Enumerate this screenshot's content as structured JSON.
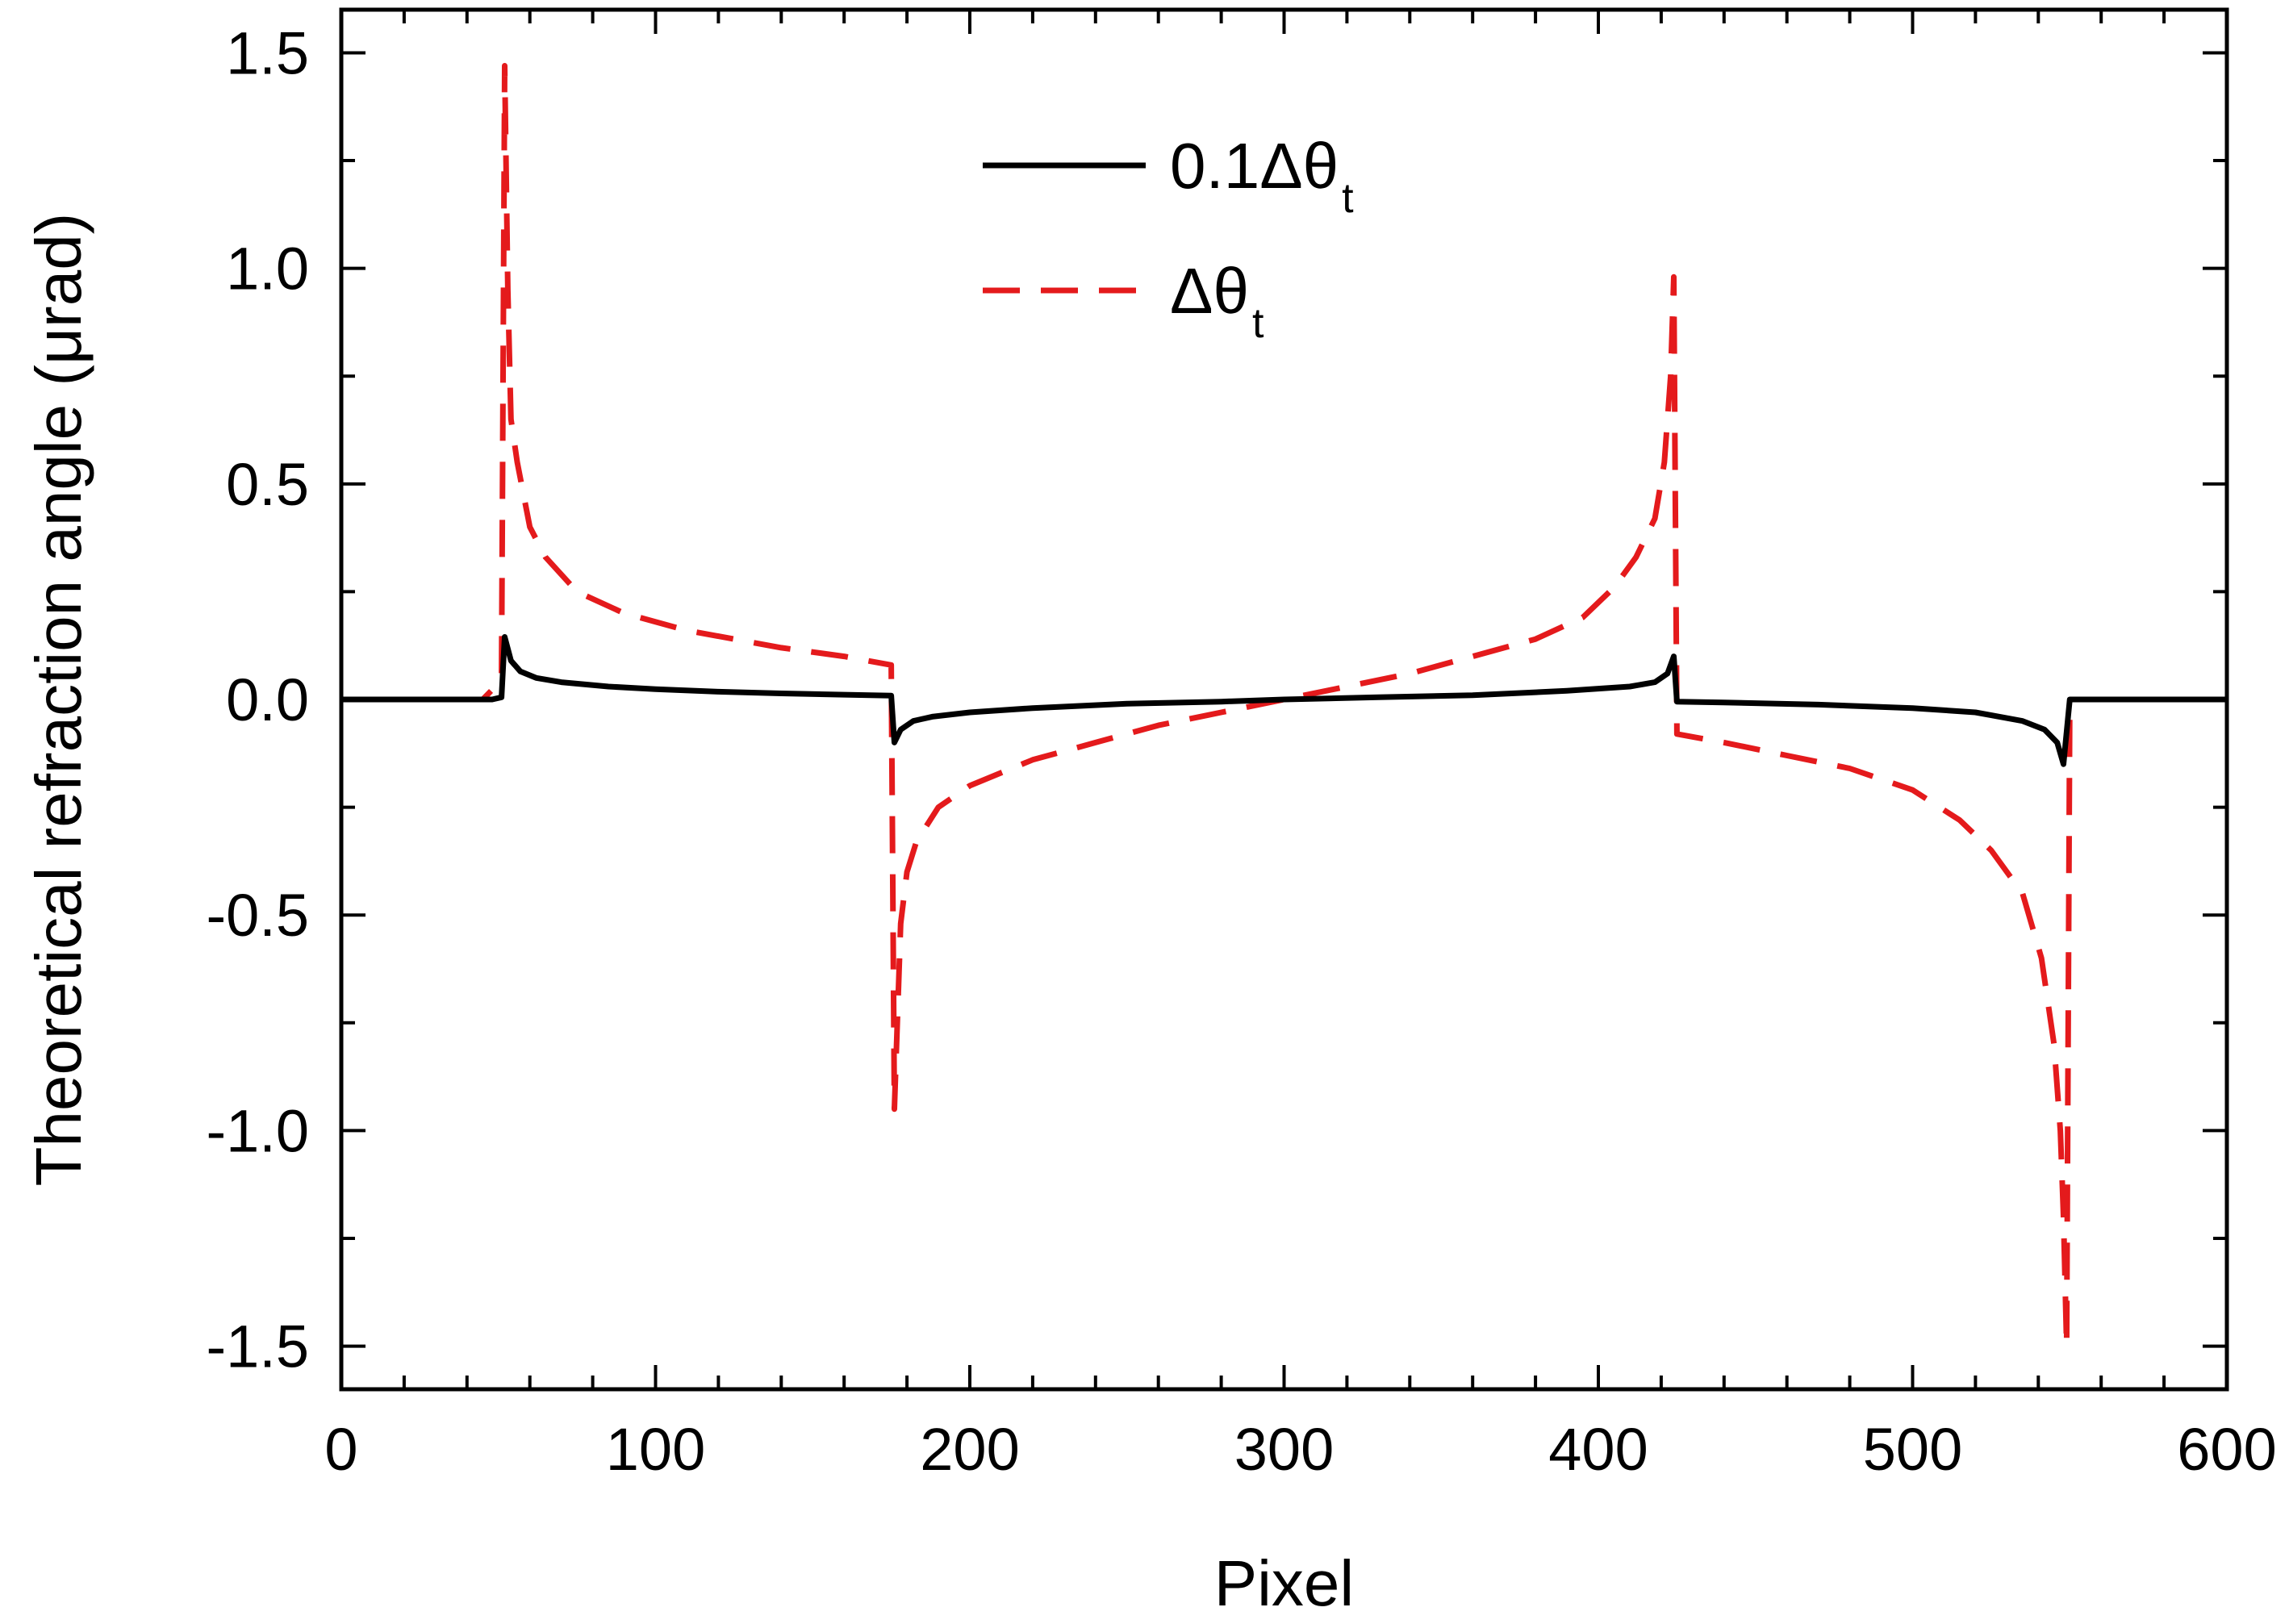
{
  "chart_data": {
    "type": "line",
    "xlabel": "Pixel",
    "ylabel": "Theoretical refraction angle (μrad)",
    "xlim": [
      0,
      600
    ],
    "ylim": [
      -1.6,
      1.6
    ],
    "x_ticks": [
      0,
      100,
      200,
      300,
      400,
      500,
      600
    ],
    "x_tick_labels": [
      "0",
      "100",
      "200",
      "300",
      "400",
      "500",
      "600"
    ],
    "y_ticks": [
      -1.5,
      -1.0,
      -0.5,
      0.0,
      0.5,
      1.0,
      1.5
    ],
    "y_tick_labels": [
      "-1.5",
      "-1.0",
      "-0.5",
      "0.0",
      "0.5",
      "1.0",
      "1.5"
    ],
    "grid": false,
    "legend_position": "top-center",
    "series": [
      {
        "name": "0.1Δθ",
        "name_subscript": "t",
        "color": "#000000",
        "dash": "solid",
        "points": [
          [
            0,
            0
          ],
          [
            48,
            0
          ],
          [
            51,
            0.005
          ],
          [
            52,
            0.145
          ],
          [
            54,
            0.09
          ],
          [
            57,
            0.065
          ],
          [
            62,
            0.05
          ],
          [
            70,
            0.04
          ],
          [
            85,
            0.03
          ],
          [
            100,
            0.024
          ],
          [
            120,
            0.018
          ],
          [
            140,
            0.014
          ],
          [
            160,
            0.011
          ],
          [
            175,
            0.009
          ],
          [
            176,
            -0.1
          ],
          [
            178,
            -0.07
          ],
          [
            182,
            -0.05
          ],
          [
            188,
            -0.04
          ],
          [
            200,
            -0.03
          ],
          [
            220,
            -0.02
          ],
          [
            250,
            -0.01
          ],
          [
            280,
            -0.005
          ],
          [
            300,
            0.0
          ],
          [
            330,
            0.005
          ],
          [
            360,
            0.01
          ],
          [
            390,
            0.02
          ],
          [
            410,
            0.03
          ],
          [
            418,
            0.04
          ],
          [
            422,
            0.06
          ],
          [
            424,
            0.1
          ],
          [
            425,
            -0.005
          ],
          [
            440,
            -0.007
          ],
          [
            470,
            -0.012
          ],
          [
            500,
            -0.02
          ],
          [
            520,
            -0.03
          ],
          [
            535,
            -0.05
          ],
          [
            542,
            -0.07
          ],
          [
            546,
            -0.1
          ],
          [
            548,
            -0.15
          ],
          [
            550,
            0.0
          ],
          [
            600,
            0.0
          ]
        ]
      },
      {
        "name": "Δθ",
        "name_subscript": "t",
        "color": "#e41a1c",
        "dash": "dashed",
        "points": [
          [
            0,
            0
          ],
          [
            45,
            0
          ],
          [
            49,
            0.03
          ],
          [
            51,
            0.06
          ],
          [
            52,
            1.47
          ],
          [
            53,
            0.95
          ],
          [
            54,
            0.65
          ],
          [
            56,
            0.55
          ],
          [
            60,
            0.4
          ],
          [
            65,
            0.33
          ],
          [
            75,
            0.25
          ],
          [
            90,
            0.2
          ],
          [
            110,
            0.16
          ],
          [
            140,
            0.12
          ],
          [
            160,
            0.1
          ],
          [
            175,
            0.08
          ],
          [
            176,
            -0.95
          ],
          [
            178,
            -0.52
          ],
          [
            180,
            -0.4
          ],
          [
            183,
            -0.33
          ],
          [
            190,
            -0.25
          ],
          [
            200,
            -0.2
          ],
          [
            220,
            -0.14
          ],
          [
            240,
            -0.1
          ],
          [
            260,
            -0.06
          ],
          [
            280,
            -0.03
          ],
          [
            300,
            0.0
          ],
          [
            320,
            0.03
          ],
          [
            340,
            0.06
          ],
          [
            360,
            0.1
          ],
          [
            380,
            0.14
          ],
          [
            395,
            0.19
          ],
          [
            405,
            0.26
          ],
          [
            412,
            0.33
          ],
          [
            418,
            0.42
          ],
          [
            421,
            0.55
          ],
          [
            423,
            0.75
          ],
          [
            424,
            0.98
          ],
          [
            425,
            -0.08
          ],
          [
            440,
            -0.1
          ],
          [
            460,
            -0.13
          ],
          [
            480,
            -0.16
          ],
          [
            500,
            -0.21
          ],
          [
            515,
            -0.28
          ],
          [
            525,
            -0.35
          ],
          [
            535,
            -0.45
          ],
          [
            541,
            -0.6
          ],
          [
            545,
            -0.8
          ],
          [
            547,
            -1.0
          ],
          [
            548,
            -1.2
          ],
          [
            549,
            -1.5
          ],
          [
            550,
            0.0
          ],
          [
            600,
            0.0
          ]
        ]
      }
    ]
  }
}
